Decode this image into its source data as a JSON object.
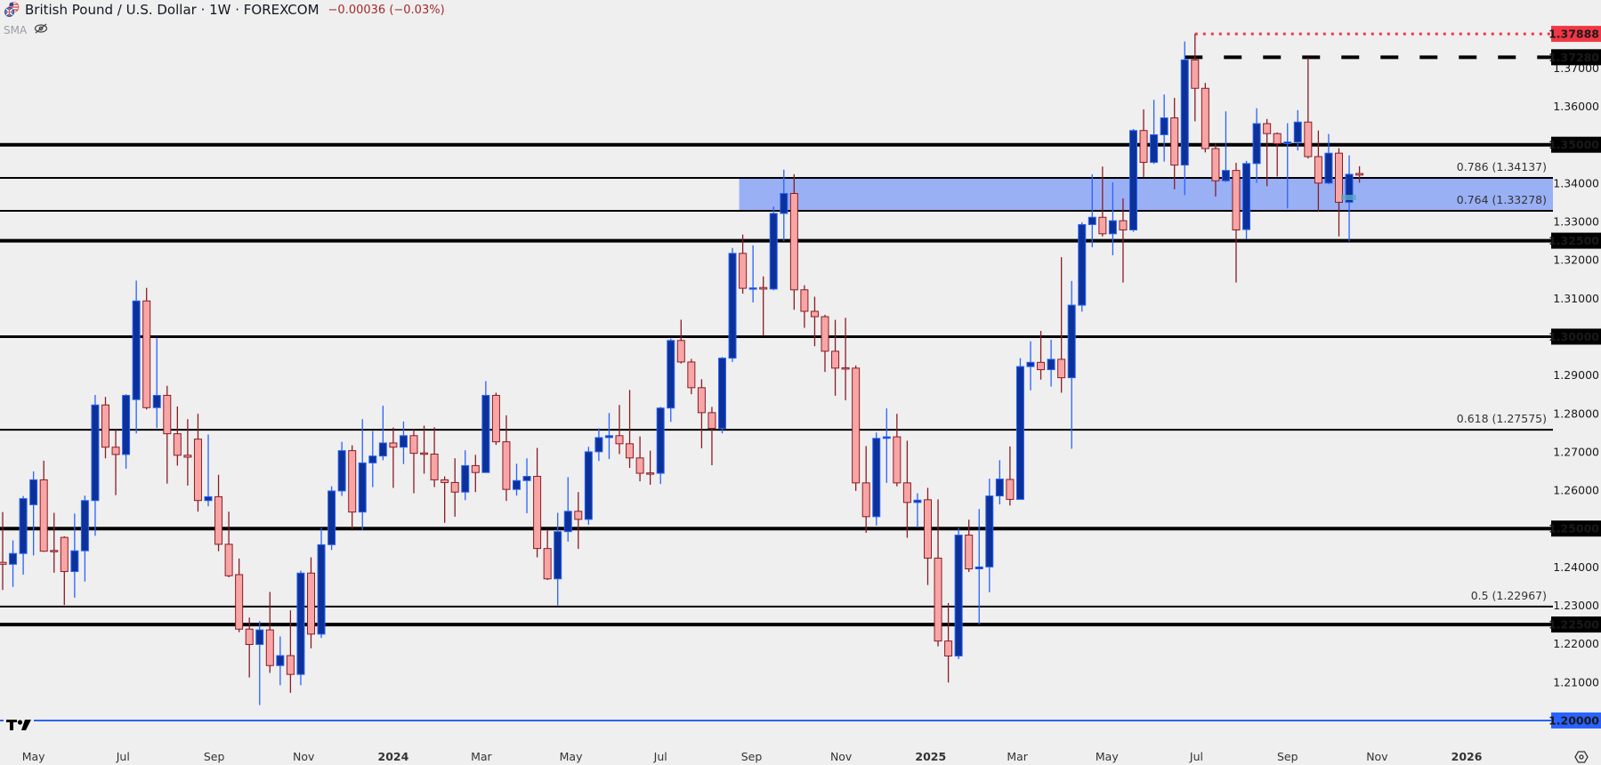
{
  "header": {
    "title": "British Pound / U.S. Dollar · 1W · FOREXCOM",
    "change": "−0.00036 (−0.03%)",
    "indicator": "SMA",
    "flag_icon": "gb-us-flag-icon",
    "visibility_icon": "eye-off-icon"
  },
  "colors": {
    "background": "#efefef",
    "bull_body": "#0c3299",
    "bull_border": "#2962ff",
    "bear_body": "#f8a5a6",
    "bear_border": "#8a1c24",
    "zone": "#99b0f5",
    "high_marker": "#f23645",
    "level_line": "#000000",
    "support_line": "#2962ff"
  },
  "chart_data": {
    "type": "candlestick",
    "symbol": "British Pound / U.S. Dollar",
    "interval": "1W",
    "ylim": [
      1.195,
      1.385
    ],
    "grid": false,
    "candle_fields": [
      "week",
      "open",
      "high",
      "low",
      "close"
    ],
    "candles": [
      [
        "2023-04-10",
        1.2412,
        1.2543,
        1.234,
        1.2407
      ],
      [
        "2023-04-17",
        1.2407,
        1.2469,
        1.2348,
        1.2435
      ],
      [
        "2023-04-24",
        1.2435,
        1.2585,
        1.238,
        1.2578
      ],
      [
        "2023-05-01",
        1.2562,
        1.2649,
        1.243,
        1.2627
      ],
      [
        "2023-05-08",
        1.2627,
        1.2677,
        1.2439,
        1.2441
      ],
      [
        "2023-05-15",
        1.2443,
        1.2541,
        1.2385,
        1.2441
      ],
      [
        "2023-05-22",
        1.2477,
        1.248,
        1.2301,
        1.2388
      ],
      [
        "2023-05-29",
        1.2388,
        1.2539,
        1.232,
        1.2442
      ],
      [
        "2023-06-05",
        1.2442,
        1.2586,
        1.2362,
        1.2573
      ],
      [
        "2023-06-12",
        1.2573,
        1.2848,
        1.2481,
        1.2822
      ],
      [
        "2023-06-19",
        1.2822,
        1.2843,
        1.2683,
        1.2712
      ],
      [
        "2023-06-26",
        1.2712,
        1.2758,
        1.2587,
        1.2693
      ],
      [
        "2023-07-03",
        1.2693,
        1.285,
        1.2656,
        1.2847
      ],
      [
        "2023-07-10",
        1.2836,
        1.3146,
        1.2748,
        1.3093
      ],
      [
        "2023-07-17",
        1.3093,
        1.3127,
        1.281,
        1.2815
      ],
      [
        "2023-07-24",
        1.2815,
        1.2996,
        1.2762,
        1.2847
      ],
      [
        "2023-07-31",
        1.2847,
        1.2872,
        1.2617,
        1.2747
      ],
      [
        "2023-08-07",
        1.2747,
        1.2818,
        1.2664,
        1.2691
      ],
      [
        "2023-08-14",
        1.2691,
        1.2785,
        1.2612,
        1.2686
      ],
      [
        "2023-08-21",
        1.2733,
        1.2799,
        1.2544,
        1.2573
      ],
      [
        "2023-08-28",
        1.2573,
        1.2745,
        1.2558,
        1.2583
      ],
      [
        "2023-09-04",
        1.2583,
        1.264,
        1.2441,
        1.2459
      ],
      [
        "2023-09-11",
        1.2459,
        1.2544,
        1.2373,
        1.2377
      ],
      [
        "2023-09-18",
        1.238,
        1.2422,
        1.223,
        1.2238
      ],
      [
        "2023-09-25",
        1.2238,
        1.2268,
        1.2112,
        1.2198
      ],
      [
        "2023-10-02",
        1.2198,
        1.2259,
        1.204,
        1.2236
      ],
      [
        "2023-10-09",
        1.2236,
        1.2335,
        1.2124,
        1.2143
      ],
      [
        "2023-10-16",
        1.2143,
        1.2219,
        1.2092,
        1.2169
      ],
      [
        "2023-10-23",
        1.2169,
        1.2287,
        1.2072,
        1.212
      ],
      [
        "2023-10-30",
        1.212,
        1.239,
        1.2092,
        1.2384
      ],
      [
        "2023-11-06",
        1.2384,
        1.2425,
        1.2188,
        1.2225
      ],
      [
        "2023-11-13",
        1.2225,
        1.2502,
        1.2215,
        1.2458
      ],
      [
        "2023-11-20",
        1.2458,
        1.261,
        1.2444,
        1.2598
      ],
      [
        "2023-11-27",
        1.2598,
        1.2726,
        1.2585,
        1.2703
      ],
      [
        "2023-12-04",
        1.2703,
        1.2717,
        1.2499,
        1.2543
      ],
      [
        "2023-12-11",
        1.2543,
        1.2785,
        1.2496,
        1.2671
      ],
      [
        "2023-12-18",
        1.2671,
        1.2754,
        1.2608,
        1.2689
      ],
      [
        "2023-12-25",
        1.2689,
        1.282,
        1.2678,
        1.2723
      ],
      [
        "2024-01-01",
        1.2723,
        1.2763,
        1.2606,
        1.2712
      ],
      [
        "2024-01-08",
        1.2712,
        1.2779,
        1.2668,
        1.2742
      ],
      [
        "2024-01-15",
        1.2742,
        1.2758,
        1.2592,
        1.2696
      ],
      [
        "2024-01-22",
        1.2697,
        1.2768,
        1.2643,
        1.2696
      ],
      [
        "2024-01-29",
        1.2694,
        1.2764,
        1.2608,
        1.2627
      ],
      [
        "2024-02-05",
        1.2627,
        1.2636,
        1.2515,
        1.262
      ],
      [
        "2024-02-12",
        1.262,
        1.2683,
        1.2531,
        1.2595
      ],
      [
        "2024-02-19",
        1.2595,
        1.2704,
        1.2574,
        1.2664
      ],
      [
        "2024-02-26",
        1.2664,
        1.2692,
        1.2595,
        1.2646
      ],
      [
        "2024-03-04",
        1.2646,
        1.2884,
        1.2646,
        1.2847
      ],
      [
        "2024-03-11",
        1.2847,
        1.2854,
        1.2718,
        1.2726
      ],
      [
        "2024-03-18",
        1.2726,
        1.2795,
        1.2572,
        1.2602
      ],
      [
        "2024-03-25",
        1.2602,
        1.2669,
        1.2586,
        1.2625
      ],
      [
        "2024-04-01",
        1.2625,
        1.2683,
        1.254,
        1.2636
      ],
      [
        "2024-04-08",
        1.2636,
        1.271,
        1.2425,
        1.2448
      ],
      [
        "2024-04-15",
        1.2448,
        1.2497,
        1.2366,
        1.2369
      ],
      [
        "2024-04-22",
        1.2369,
        1.2541,
        1.23,
        1.2492
      ],
      [
        "2024-04-29",
        1.2492,
        1.2634,
        1.2466,
        1.2545
      ],
      [
        "2024-05-06",
        1.2545,
        1.2595,
        1.2447,
        1.2524
      ],
      [
        "2024-05-13",
        1.2524,
        1.2713,
        1.251,
        1.27
      ],
      [
        "2024-05-20",
        1.27,
        1.2761,
        1.2676,
        1.2737
      ],
      [
        "2024-05-27",
        1.2737,
        1.2801,
        1.2681,
        1.2742
      ],
      [
        "2024-06-03",
        1.2742,
        1.2822,
        1.2694,
        1.2721
      ],
      [
        "2024-06-10",
        1.2721,
        1.2861,
        1.2658,
        1.2684
      ],
      [
        "2024-06-17",
        1.2684,
        1.274,
        1.2623,
        1.2644
      ],
      [
        "2024-06-24",
        1.2645,
        1.2703,
        1.2614,
        1.2644
      ],
      [
        "2024-07-01",
        1.2644,
        1.2817,
        1.2616,
        1.2814
      ],
      [
        "2024-07-08",
        1.2814,
        1.2995,
        1.2778,
        1.299
      ],
      [
        "2024-07-15",
        1.299,
        1.3044,
        1.293,
        1.2934
      ],
      [
        "2024-07-22",
        1.2934,
        1.2942,
        1.285,
        1.2867
      ],
      [
        "2024-07-29",
        1.2867,
        1.2889,
        1.2709,
        1.2802
      ],
      [
        "2024-08-05",
        1.2802,
        1.2817,
        1.2665,
        1.2761
      ],
      [
        "2024-08-12",
        1.2761,
        1.2947,
        1.2748,
        1.2944
      ],
      [
        "2024-08-19",
        1.2944,
        1.3231,
        1.2934,
        1.3217
      ],
      [
        "2024-08-26",
        1.3217,
        1.3266,
        1.3112,
        1.3126
      ],
      [
        "2024-09-02",
        1.3125,
        1.3238,
        1.3089,
        1.3127
      ],
      [
        "2024-09-09",
        1.3128,
        1.3157,
        1.3002,
        1.3124
      ],
      [
        "2024-09-16",
        1.3124,
        1.3339,
        1.3121,
        1.3321
      ],
      [
        "2024-09-23",
        1.3321,
        1.3435,
        1.3249,
        1.3373
      ],
      [
        "2024-09-30",
        1.3373,
        1.3423,
        1.307,
        1.3122
      ],
      [
        "2024-10-07",
        1.3122,
        1.3134,
        1.3023,
        1.3066
      ],
      [
        "2024-10-14",
        1.3066,
        1.3104,
        1.2975,
        1.3052
      ],
      [
        "2024-10-21",
        1.3052,
        1.3057,
        1.2908,
        1.2962
      ],
      [
        "2024-10-28",
        1.2962,
        1.3044,
        1.2846,
        1.2918
      ],
      [
        "2024-11-04",
        1.2919,
        1.3049,
        1.2834,
        1.2918
      ],
      [
        "2024-11-11",
        1.2918,
        1.2925,
        1.2598,
        1.2619
      ],
      [
        "2024-11-18",
        1.2619,
        1.2715,
        1.2489,
        1.2531
      ],
      [
        "2024-11-25",
        1.2531,
        1.275,
        1.2508,
        1.2735
      ],
      [
        "2024-12-02",
        1.2735,
        1.2813,
        1.2619,
        1.2739
      ],
      [
        "2024-12-09",
        1.2739,
        1.2799,
        1.261,
        1.2619
      ],
      [
        "2024-12-16",
        1.2619,
        1.2729,
        1.2476,
        1.2568
      ],
      [
        "2024-12-23",
        1.2568,
        1.2592,
        1.2503,
        1.2574
      ],
      [
        "2024-12-30",
        1.2575,
        1.2606,
        1.2353,
        1.2423
      ],
      [
        "2025-01-06",
        1.2423,
        1.2576,
        1.2193,
        1.2207
      ],
      [
        "2025-01-13",
        1.2207,
        1.2306,
        1.2099,
        1.2168
      ],
      [
        "2025-01-20",
        1.2168,
        1.2502,
        1.216,
        1.2483
      ],
      [
        "2025-01-27",
        1.2483,
        1.2523,
        1.2387,
        1.2395
      ],
      [
        "2025-02-03",
        1.2395,
        1.2551,
        1.225,
        1.24
      ],
      [
        "2025-02-10",
        1.24,
        1.263,
        1.2334,
        1.2585
      ],
      [
        "2025-02-17",
        1.2585,
        1.2678,
        1.2563,
        1.2629
      ],
      [
        "2025-02-24",
        1.2628,
        1.2714,
        1.256,
        1.2576
      ],
      [
        "2025-03-03",
        1.2576,
        1.2944,
        1.2576,
        1.2922
      ],
      [
        "2025-03-10",
        1.2922,
        1.2988,
        1.286,
        1.2933
      ],
      [
        "2025-03-17",
        1.2933,
        1.3015,
        1.2888,
        1.2914
      ],
      [
        "2025-03-24",
        1.2914,
        1.2992,
        1.287,
        1.2941
      ],
      [
        "2025-03-31",
        1.2941,
        1.3207,
        1.2854,
        1.2893
      ],
      [
        "2025-04-07",
        1.2893,
        1.3145,
        1.2708,
        1.3082
      ],
      [
        "2025-04-14",
        1.3082,
        1.3298,
        1.3065,
        1.3292
      ],
      [
        "2025-04-21",
        1.3292,
        1.3423,
        1.3233,
        1.3311
      ],
      [
        "2025-04-28",
        1.3311,
        1.3443,
        1.3261,
        1.3268
      ],
      [
        "2025-05-05",
        1.3268,
        1.3402,
        1.3212,
        1.3302
      ],
      [
        "2025-05-12",
        1.3302,
        1.336,
        1.3141,
        1.3278
      ],
      [
        "2025-05-19",
        1.3278,
        1.3541,
        1.3273,
        1.3537
      ],
      [
        "2025-05-26",
        1.3537,
        1.3592,
        1.3415,
        1.3454
      ],
      [
        "2025-06-02",
        1.3454,
        1.3617,
        1.345,
        1.3526
      ],
      [
        "2025-06-09",
        1.3526,
        1.3631,
        1.3456,
        1.357
      ],
      [
        "2025-06-16",
        1.357,
        1.3622,
        1.3384,
        1.3447
      ],
      [
        "2025-06-23",
        1.3447,
        1.3769,
        1.3369,
        1.3721
      ],
      [
        "2025-06-30",
        1.3721,
        1.37888,
        1.3561,
        1.3647
      ],
      [
        "2025-07-07",
        1.3647,
        1.3661,
        1.348,
        1.349
      ],
      [
        "2025-07-14",
        1.349,
        1.3503,
        1.3365,
        1.3406
      ],
      [
        "2025-07-21",
        1.3406,
        1.3587,
        1.3403,
        1.3433
      ],
      [
        "2025-07-28",
        1.3433,
        1.3453,
        1.3141,
        1.3278
      ],
      [
        "2025-08-04",
        1.3279,
        1.3458,
        1.3254,
        1.3451
      ],
      [
        "2025-08-11",
        1.3451,
        1.3595,
        1.3401,
        1.3555
      ],
      [
        "2025-08-18",
        1.3555,
        1.3567,
        1.3392,
        1.3529
      ],
      [
        "2025-08-25",
        1.3529,
        1.3532,
        1.3417,
        1.3503
      ],
      [
        "2025-09-01",
        1.3503,
        1.3556,
        1.3334,
        1.3507
      ],
      [
        "2025-09-08",
        1.3507,
        1.359,
        1.3485,
        1.3559
      ],
      [
        "2025-09-15",
        1.3559,
        1.3727,
        1.3464,
        1.3469
      ],
      [
        "2025-09-22",
        1.3469,
        1.3537,
        1.3325,
        1.34
      ],
      [
        "2025-09-29",
        1.34,
        1.3528,
        1.3397,
        1.3478
      ],
      [
        "2025-10-06",
        1.3478,
        1.3491,
        1.3261,
        1.335
      ],
      [
        "2025-10-13",
        1.335,
        1.3472,
        1.3248,
        1.3423
      ],
      [
        "2025-10-20",
        1.3425,
        1.3444,
        1.3401,
        1.3421
      ]
    ],
    "horizontal_levels": [
      {
        "price": 1.35,
        "label": "1.35000",
        "weight": "heavy"
      },
      {
        "price": 1.325,
        "label": "1.32500",
        "weight": "heavy"
      },
      {
        "price": 1.3,
        "label": "1.30000",
        "weight": "medium"
      },
      {
        "price": 1.25,
        "label": "1.25000",
        "weight": "heavy"
      },
      {
        "price": 1.225,
        "label": "1.22500",
        "weight": "heavy"
      }
    ],
    "support_line": {
      "price": 1.2,
      "label": "1.20000"
    },
    "resistance_dashed": {
      "price": 1.3728,
      "label": "1.37280",
      "from": "2025-06-23"
    },
    "high_marker": {
      "price": 1.37888,
      "label": "1.37888",
      "from": "2025-06-30"
    },
    "fib_levels": [
      {
        "price": 1.34137,
        "label": "0.786 (1.34137)"
      },
      {
        "price": 1.33278,
        "label": "0.764 (1.33278)"
      },
      {
        "price": 1.27575,
        "label": "0.618 (1.27575)"
      },
      {
        "price": 1.22967,
        "label": "0.5 (1.22967)"
      }
    ],
    "zone": {
      "from": "2024-08-26",
      "top": 1.34137,
      "bottom": 1.33278
    },
    "price_ticks": [
      "1.37000",
      "1.36000",
      "1.34000",
      "1.33000",
      "1.32000",
      "1.31000",
      "1.29000",
      "1.28000",
      "1.27000",
      "1.26000",
      "1.24000",
      "1.23000",
      "1.22000",
      "1.21000"
    ],
    "time_ticks": [
      {
        "date": "2023-05-01",
        "label": "May"
      },
      {
        "date": "2023-07-01",
        "label": "Jul"
      },
      {
        "date": "2023-09-01",
        "label": "Sep"
      },
      {
        "date": "2023-11-01",
        "label": "Nov"
      },
      {
        "date": "2024-01-01",
        "label": "2024",
        "year": true
      },
      {
        "date": "2024-03-01",
        "label": "Mar"
      },
      {
        "date": "2024-05-01",
        "label": "May"
      },
      {
        "date": "2024-07-01",
        "label": "Jul"
      },
      {
        "date": "2024-09-01",
        "label": "Sep"
      },
      {
        "date": "2024-11-01",
        "label": "Nov"
      },
      {
        "date": "2025-01-01",
        "label": "2025",
        "year": true
      },
      {
        "date": "2025-03-01",
        "label": "Mar"
      },
      {
        "date": "2025-05-01",
        "label": "May"
      },
      {
        "date": "2025-07-01",
        "label": "Jul"
      },
      {
        "date": "2025-09-01",
        "label": "Sep"
      },
      {
        "date": "2025-11-01",
        "label": "Nov"
      },
      {
        "date": "2026-01-01",
        "label": "2026",
        "year": true
      }
    ]
  }
}
